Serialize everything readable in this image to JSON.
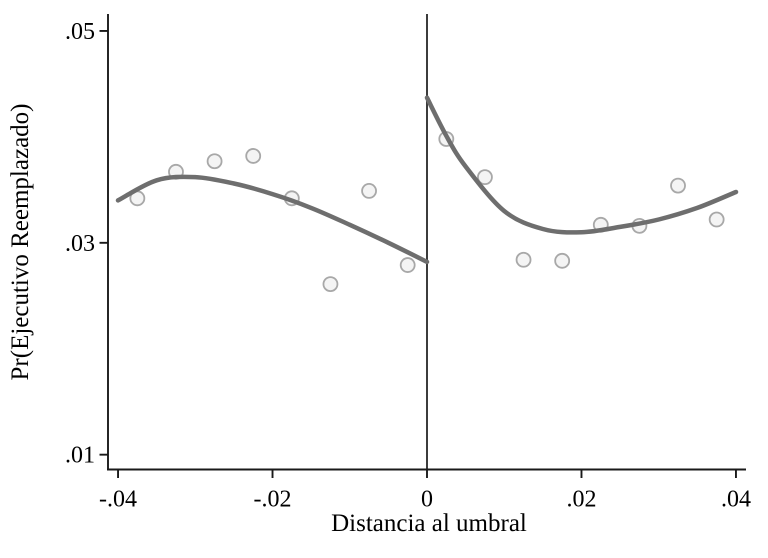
{
  "chart_data": {
    "type": "scatter",
    "subtype": "regression-discontinuity",
    "title": "",
    "xlabel": "Distancia al umbral",
    "ylabel": "Pr(Ejecutivo Reemplazado)",
    "xlim": [
      -0.0413,
      0.0413
    ],
    "ylim": [
      0.0086,
      0.0516
    ],
    "grid": false,
    "legend": false,
    "x_ticks": [
      -0.04,
      -0.02,
      0,
      0.02,
      0.04
    ],
    "x_tick_labels": [
      "-.04",
      "-.02",
      "0",
      ".02",
      ".04"
    ],
    "y_ticks": [
      0.01,
      0.03,
      0.05
    ],
    "y_tick_labels": [
      ".01",
      ".03",
      ".05"
    ],
    "cutoff_x": 0,
    "scatter": {
      "x": [
        -0.0375,
        -0.0325,
        -0.0275,
        -0.0225,
        -0.0175,
        -0.0125,
        -0.0075,
        -0.0025,
        0.0025,
        0.0075,
        0.0125,
        0.0175,
        0.0225,
        0.0275,
        0.0325,
        0.0375
      ],
      "y": [
        0.0342,
        0.0367,
        0.0377,
        0.0382,
        0.0342,
        0.0261,
        0.0349,
        0.0279,
        0.0398,
        0.0362,
        0.0284,
        0.0283,
        0.0317,
        0.0316,
        0.0354,
        0.0322
      ]
    },
    "fit_left": {
      "x": [
        -0.04,
        -0.035,
        -0.03,
        -0.025,
        -0.02,
        -0.015,
        -0.01,
        -0.005,
        0.0
      ],
      "y": [
        0.034,
        0.0359,
        0.0362,
        0.0356,
        0.0346,
        0.0333,
        0.0317,
        0.03,
        0.0282
      ]
    },
    "fit_right": {
      "x": [
        0.0,
        0.0025,
        0.005,
        0.01,
        0.015,
        0.02,
        0.025,
        0.03,
        0.035,
        0.04
      ],
      "y": [
        0.0437,
        0.0401,
        0.0372,
        0.033,
        0.0313,
        0.031,
        0.0315,
        0.0322,
        0.0333,
        0.0348
      ]
    },
    "colors": {
      "fit_line": "#6e6e6e",
      "marker_stroke": "#a8a8a8",
      "marker_fill": "#f4f4f4",
      "axis": "#1a1a1a",
      "cutoff_line": "#3c3c3c",
      "text": "#000000",
      "background": "#ffffff"
    }
  }
}
